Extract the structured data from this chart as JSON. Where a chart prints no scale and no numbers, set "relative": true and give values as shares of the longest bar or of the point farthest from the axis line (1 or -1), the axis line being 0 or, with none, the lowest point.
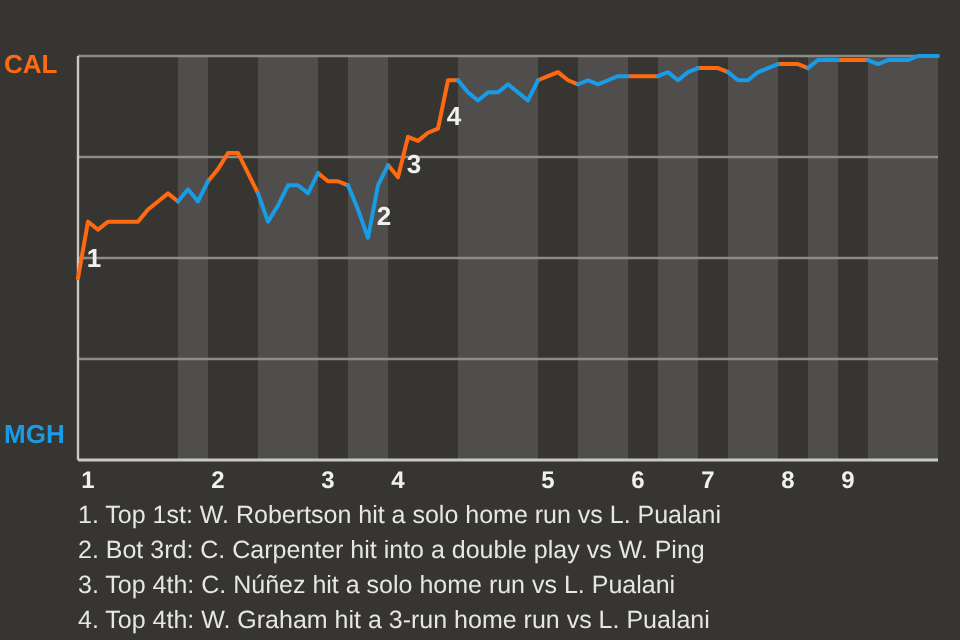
{
  "chart_data": {
    "type": "line",
    "relative": true,
    "categories": [
      null,
      "1",
      null,
      null,
      null,
      null,
      null,
      null,
      null,
      null,
      null,
      null,
      null,
      null,
      "2",
      null,
      null,
      null,
      null,
      null,
      null,
      null,
      null,
      null,
      null,
      "3",
      null,
      null,
      null,
      null,
      null,
      null,
      "4",
      null,
      null,
      null,
      null,
      null,
      null,
      null,
      null,
      null,
      null,
      null,
      null,
      null,
      null,
      "5",
      null,
      null,
      null,
      null,
      null,
      null,
      null,
      null,
      "6",
      null,
      null,
      null,
      null,
      null,
      null,
      "7",
      null,
      null,
      null,
      null,
      null,
      null,
      null,
      "8",
      null,
      null,
      null,
      null,
      null,
      "9",
      null,
      null,
      null,
      null,
      null,
      null,
      null,
      null,
      null
    ],
    "grid": "y",
    "legend": "left",
    "marker": "none",
    "line_style": "solid",
    "series": [
      {
        "name": "CAL",
        "color": "#ff6a10",
        "values": [
          0.45,
          0.59,
          0.57,
          0.59,
          0.59,
          0.59,
          0.59,
          0.62,
          0.64,
          0.66,
          0.64,
          null,
          null,
          0.69,
          0.72,
          0.76,
          0.76,
          0.71,
          0.66,
          null,
          null,
          null,
          null,
          null,
          0.71,
          0.69,
          0.69,
          0.68,
          null,
          null,
          null,
          0.73,
          0.7,
          0.8,
          0.79,
          0.81,
          0.82,
          0.94,
          0.94,
          null,
          null,
          null,
          null,
          null,
          null,
          null,
          0.94,
          0.95,
          0.96,
          0.94,
          0.93,
          null,
          null,
          null,
          null,
          0.95,
          0.95,
          0.95,
          0.95,
          null,
          null,
          null,
          0.97,
          0.97,
          0.97,
          0.96,
          null,
          null,
          null,
          null,
          0.98,
          0.98,
          0.98,
          0.97,
          null,
          null,
          0.99,
          0.99,
          0.99,
          0.99,
          null,
          null,
          null,
          null,
          null,
          null,
          null
        ]
      },
      {
        "name": "MGH",
        "color": "#1a9be6",
        "values": [
          null,
          null,
          null,
          null,
          null,
          null,
          null,
          null,
          null,
          null,
          0.64,
          0.67,
          0.64,
          0.69,
          null,
          null,
          null,
          null,
          0.66,
          0.59,
          0.63,
          0.68,
          0.68,
          0.66,
          0.71,
          null,
          null,
          0.68,
          0.62,
          0.55,
          0.68,
          0.73,
          null,
          null,
          null,
          null,
          null,
          null,
          0.94,
          0.91,
          0.89,
          0.91,
          0.91,
          0.93,
          0.91,
          0.89,
          0.94,
          null,
          null,
          null,
          0.93,
          0.94,
          0.93,
          0.94,
          0.95,
          0.95,
          null,
          null,
          0.95,
          0.96,
          0.94,
          0.96,
          0.97,
          null,
          null,
          0.96,
          0.94,
          0.94,
          0.96,
          0.97,
          0.98,
          null,
          null,
          0.97,
          0.99,
          0.99,
          0.99,
          null,
          null,
          0.99,
          0.98,
          0.99,
          0.99,
          0.99,
          1,
          1,
          1
        ]
      }
    ],
    "annotations": [
      "1",
      "2",
      "3",
      "4",
      "1. Top 1st: W. Robertson hit a solo home run vs L. Pualani",
      "2. Bot 3rd: C. Carpenter hit into a double play vs W. Ping",
      "3. Top 4th: C. Núñez hit a solo home run vs L. Pualani",
      "4. Top 4th: W. Graham hit a 3-run home run vs L. Pualani"
    ]
  }
}
